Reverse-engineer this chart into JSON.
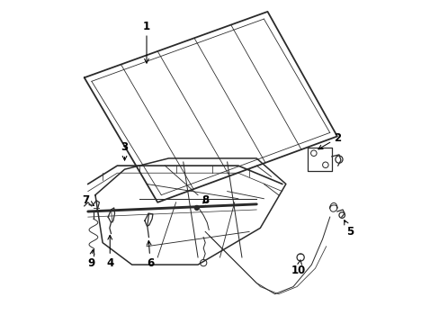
{
  "bg_color": "#ffffff",
  "line_color": "#2a2a2a",
  "label_color": "#000000",
  "arrow_color": "#000000",
  "linewidth": 0.9,
  "figsize": [
    4.89,
    3.6
  ],
  "dpi": 100
}
